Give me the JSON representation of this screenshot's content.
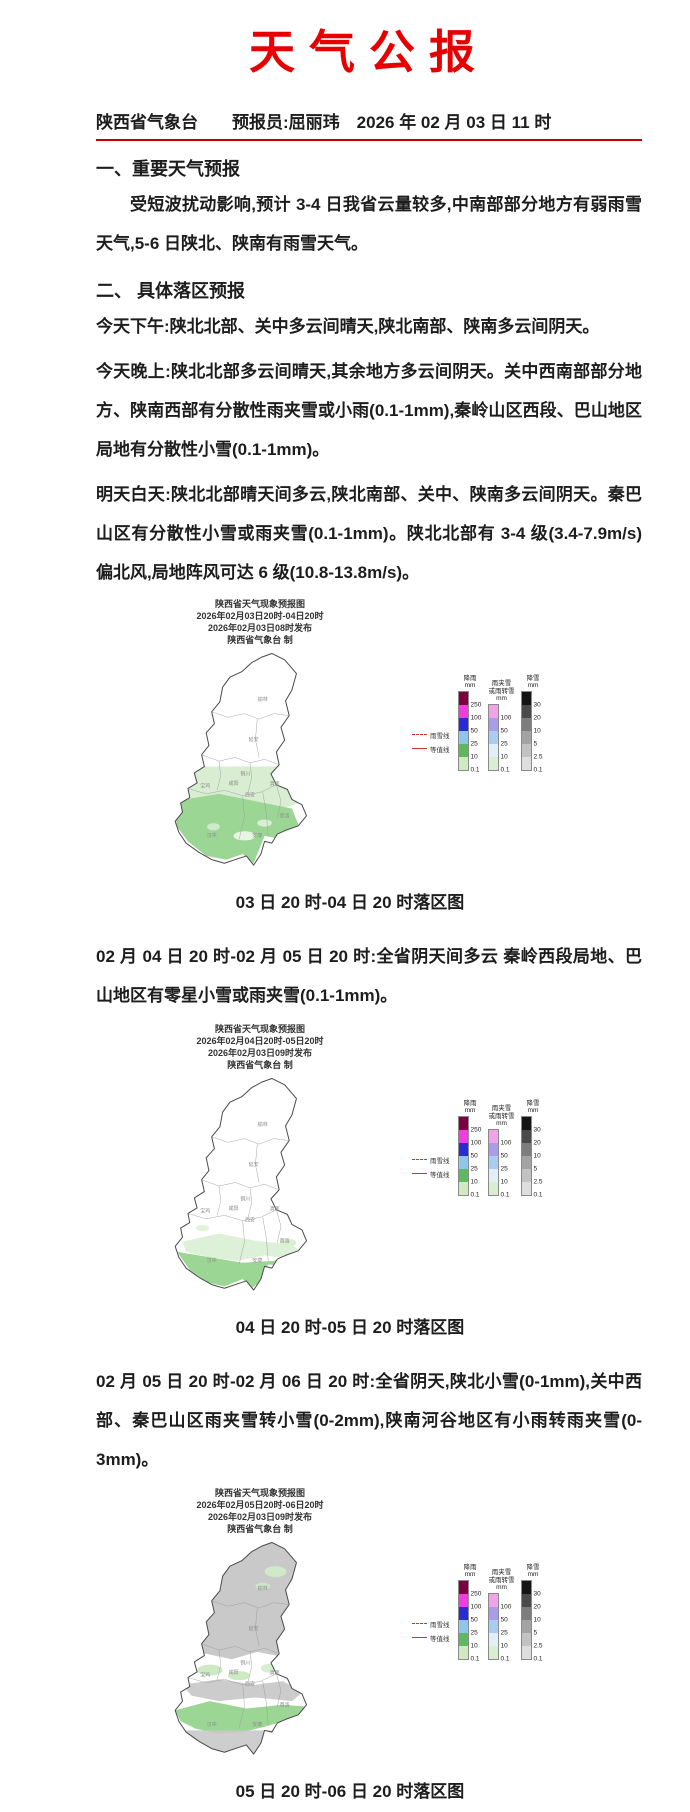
{
  "title": {
    "text": "天气公报",
    "color": "#e60000"
  },
  "meta_line": {
    "text": "陕西省气象台　　预报员:屈丽玮　2026 年 02 月 03 日 11 时",
    "underline_color": "#c40000"
  },
  "sections": {
    "s1": {
      "heading": "一、重要天气预报",
      "body": "受短波扰动影响,预计 3-4 日我省云量较多,中南部部分地方有弱雨雪天气,5-6 日陕北、陕南有雨雪天气。"
    },
    "s2": {
      "heading": "二、 具体落区预报",
      "p_today_pm": "今天下午:陕北北部、关中多云间晴天,陕北南部、陕南多云间阴天。",
      "p_tonight": "今天晚上:陕北北部多云间晴天,其余地方多云间阴天。关中西南部部分地方、陕南西部有分散性雨夹雪或小雨(0.1-1mm),秦岭山区西段、巴山地区局地有分散性小雪(0.1-1mm)。",
      "p_tomorrow": "明天白天:陕北北部晴天间多云,陕北南部、关中、陕南多云间阴天。秦巴山区有分散性小雪或雨夹雪(0.1-1mm)。陕北北部有 3-4 级(3.4-7.9m/s)偏北风,局地阵风可达 6 级(10.8-13.8m/s)。",
      "p_day2": "02 月 04 日 20 时-02 月 05 日 20 时:全省阴天间多云 秦岭西段局地、巴山地区有零星小雪或雨夹雪(0.1-1mm)。",
      "p_day3": "02 月 05 日 20 时-02 月 06 日 20 时:全省阴天,陕北小雪(0-1mm),关中西部、秦巴山区雨夹雪转小雪(0-2mm),陕南河谷地区有小雨转雨夹雪(0-3mm)。"
    }
  },
  "maps": [
    {
      "header_lines": [
        "陕西省天气现象预报图",
        "2026年02月03日20时-04日20时",
        "2026年02月03日08时发布",
        "陕西省气象台  制"
      ],
      "caption": "03 日 20 时-04 日 20 时落区图"
    },
    {
      "header_lines": [
        "陕西省天气现象预报图",
        "2026年02月04日20时-05日20时",
        "2026年02月03日09时发布",
        "陕西省气象台  制"
      ],
      "caption": "04 日 20 时-05 日 20 时落区图"
    },
    {
      "header_lines": [
        "陕西省天气现象预报图",
        "2026年02月05日20时-06日20时",
        "2026年02月03日09时发布",
        "陕西省气象台  制"
      ],
      "caption": "05 日 20 时-06 日 20 时落区图"
    }
  ],
  "map_city_labels": [
    "榆林",
    "延安",
    "铜川",
    "渭南",
    "西安",
    "咸阳",
    "宝鸡",
    "汉中",
    "安康",
    "商洛"
  ],
  "legend": {
    "rain": {
      "title_lines": [
        "降雨",
        "mm"
      ],
      "labels": [
        "250",
        "100",
        "50",
        "25",
        "10",
        "0.1"
      ],
      "colors": [
        "#7d0042",
        "#f03ce0",
        "#2b2bd4",
        "#8fc6ee",
        "#5eb95e",
        "#cfeac3"
      ]
    },
    "sleet": {
      "title_lines": [
        "雨夹雪",
        "或雨转雪",
        "mm"
      ],
      "labels": [
        "100",
        "50",
        "25",
        "10",
        "0.1"
      ],
      "colors": [
        "#f2a2e8",
        "#ab9ce8",
        "#a9cdf2",
        "#e2eff8",
        "#d8efd2"
      ]
    },
    "snow": {
      "title_lines": [
        "降雪",
        "mm"
      ],
      "labels": [
        "30",
        "20",
        "10",
        "5",
        "2.5",
        "0.1"
      ],
      "colors": [
        "#141414",
        "#4a4a4a",
        "#7d7d7d",
        "#a3a3a3",
        "#c2c2c2",
        "#dedede"
      ]
    },
    "lines": [
      {
        "label": "雨雪线",
        "style": "dashed",
        "color": "#c0392b"
      },
      {
        "label": "等值线",
        "style": "solid",
        "color": "#c0392b"
      }
    ]
  },
  "map_colors": {
    "light_rain_green": "#9bd694",
    "pale_green": "#cfe9c7",
    "snow_gray": "#c9c9c9",
    "boundary": "#4a4a4a"
  }
}
